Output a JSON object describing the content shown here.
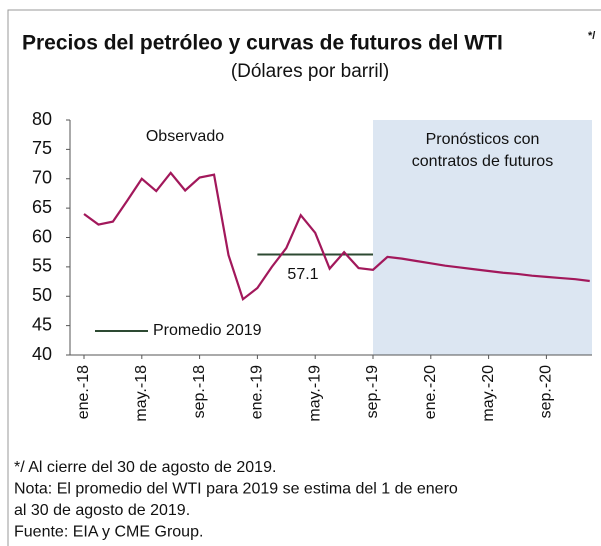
{
  "chart_data": {
    "type": "line",
    "title": "Precios del petróleo y curvas de futuros del WTI",
    "title_mark": "*/",
    "subtitle": "(Dólares por barril)",
    "categories": [
      "ene.-18",
      null,
      null,
      null,
      "may.-18",
      null,
      null,
      null,
      "sep.-18",
      null,
      null,
      null,
      "ene.-19",
      null,
      null,
      null,
      "may.-19",
      null,
      null,
      null,
      "sep.-19",
      null,
      null,
      null,
      "ene.-20",
      null,
      null,
      null,
      "may.-20",
      null,
      null,
      null,
      "sep.-20",
      null,
      null,
      null
    ],
    "series": [
      {
        "color": "#a2185b",
        "values": [
          64,
          62.2,
          62.7,
          66.3,
          70,
          67.9,
          71,
          68,
          70.2,
          70.7,
          57,
          49.5,
          51.4,
          55,
          58.2,
          63.8,
          60.8,
          54.7,
          57.5,
          54.8,
          54.5,
          56.7,
          56.4,
          56.0,
          55.6,
          55.2,
          54.9,
          54.6,
          54.3,
          54.0,
          53.8,
          53.5,
          53.3,
          53.1,
          52.9,
          52.6
        ]
      }
    ],
    "ylim": [
      40,
      80
    ],
    "yticks": [
      40,
      45,
      50,
      55,
      60,
      65,
      70,
      75,
      80
    ],
    "shaded_from": "sep.-19",
    "shade_color": "#dce6f2",
    "annotations": {
      "observed": "Observado",
      "forecast": [
        "Pronósticos con",
        "contratos de futuros"
      ]
    },
    "average": {
      "name": "Promedio 2019",
      "value": 57.1,
      "color": "#2d4a32",
      "from": "ene.-19",
      "to": "sep.-19"
    },
    "notes": [
      "*/ Al cierre del 30 de agosto de 2019.",
      "Nota: El promedio del WTI para 2019 se estima del 1 de enero",
      "al 30 de agosto de 2019.",
      "Fuente: EIA y CME Group."
    ]
  }
}
